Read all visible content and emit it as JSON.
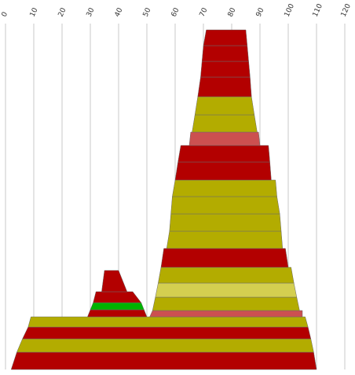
{
  "chart_data": {
    "type": "area",
    "title": "",
    "xlabel": "",
    "ylabel": "",
    "xlim": [
      0,
      120
    ],
    "x_ticks": [
      "0",
      "10",
      "20",
      "30",
      "40",
      "50",
      "60",
      "70",
      "80",
      "90",
      "100",
      "110",
      "120"
    ],
    "grid": true,
    "grid_axis": "x",
    "x_axis_position": "top",
    "legend": "none",
    "colors": {
      "red": "#b30000",
      "olive": "#b3ac00",
      "pink": "#cc5050",
      "light_olive": "#d4cf50",
      "green": "#00b300"
    },
    "shapes": [
      {
        "name": "large-stack",
        "bands": [
          {
            "color": "red",
            "bottom": [
              2,
              110
            ],
            "top": [
              4,
              109
            ]
          },
          {
            "color": "olive",
            "bottom": [
              4,
              109
            ],
            "top": [
              6,
              108
            ]
          },
          {
            "color": "red",
            "bottom": [
              6,
              108
            ],
            "top": [
              8,
              107
            ]
          },
          {
            "color": "olive",
            "bottom": [
              8,
              107
            ],
            "top": [
              9,
              106
            ]
          },
          {
            "color": "pink",
            "bottom": [
              51,
              105
            ],
            "top": [
              52,
              105
            ]
          },
          {
            "color": "olive",
            "bottom": [
              52,
              104
            ],
            "top": [
              53,
              103
            ]
          },
          {
            "color": "light_olive",
            "bottom": [
              53,
              103
            ],
            "top": [
              54,
              102
            ]
          },
          {
            "color": "olive",
            "bottom": [
              54,
              102
            ],
            "top": [
              55,
              101
            ]
          },
          {
            "color": "red",
            "bottom": [
              55,
              100
            ],
            "top": [
              56,
              99
            ]
          },
          {
            "color": "olive",
            "bottom": [
              57,
              98
            ],
            "top": [
              58,
              97.5
            ]
          },
          {
            "color": "olive",
            "bottom": [
              58,
              97.5
            ],
            "top": [
              58.5,
              97
            ]
          },
          {
            "color": "olive",
            "bottom": [
              58.5,
              97
            ],
            "top": [
              59,
              96
            ]
          },
          {
            "color": "olive",
            "bottom": [
              59,
              96
            ],
            "top": [
              60,
              95.5
            ]
          },
          {
            "color": "red",
            "bottom": [
              60,
              94
            ],
            "top": [
              61,
              93.5
            ]
          },
          {
            "color": "red",
            "bottom": [
              61,
              93.5
            ],
            "top": [
              62,
              93
            ]
          },
          {
            "color": "pink",
            "bottom": [
              65,
              90
            ],
            "top": [
              65.5,
              89.5
            ]
          },
          {
            "color": "olive",
            "bottom": [
              66,
              89
            ],
            "top": [
              67,
              88
            ]
          },
          {
            "color": "olive",
            "bottom": [
              67,
              88
            ],
            "top": [
              68,
              87
            ]
          },
          {
            "color": "red",
            "bottom": [
              68,
              87
            ],
            "top": [
              69,
              86.5
            ]
          },
          {
            "color": "red",
            "bottom": [
              69,
              86.5
            ],
            "top": [
              69.5,
              86
            ]
          },
          {
            "color": "red",
            "bottom": [
              69.5,
              86
            ],
            "top": [
              70,
              85.5
            ]
          },
          {
            "color": "red",
            "bottom": [
              70,
              85.5
            ],
            "top": [
              71,
              85
            ]
          }
        ]
      },
      {
        "name": "small-stack",
        "bands": [
          {
            "color": "red",
            "bottom": [
              29,
              50
            ],
            "top": [
              30,
              49
            ]
          },
          {
            "color": "green",
            "bottom": [
              30,
              49
            ],
            "top": [
              31,
              48
            ]
          },
          {
            "color": "red",
            "bottom": [
              31,
              48
            ],
            "top": [
              32,
              45
            ]
          },
          {
            "color": "red",
            "bottom": [
              34,
              43
            ],
            "top": [
              35,
              40
            ]
          }
        ]
      }
    ]
  }
}
